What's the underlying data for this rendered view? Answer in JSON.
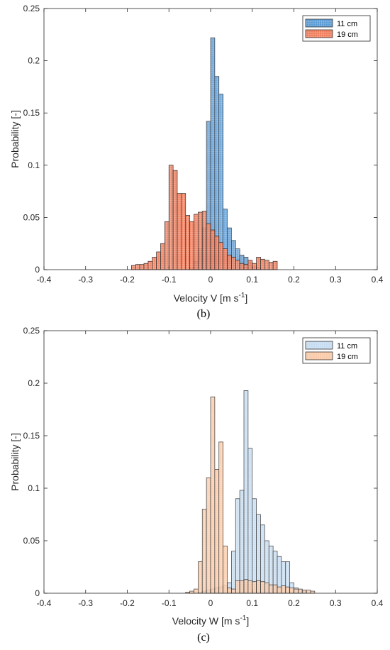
{
  "chart_data": [
    {
      "type": "histogram",
      "panel_label": "(b)",
      "xlabel": "Velocity V [m s",
      "xlabel_sup": "-1",
      "xlabel_end": "]",
      "ylabel": "Probability [-]",
      "xlim": [
        -0.4,
        0.4
      ],
      "ylim": [
        0,
        0.25
      ],
      "xticks": [
        "-0.4",
        "-0.3",
        "-0.2",
        "-0.1",
        "0",
        "0.1",
        "0.2",
        "0.3",
        "0.4"
      ],
      "yticks": [
        "0",
        "0.05",
        "0.1",
        "0.15",
        "0.2",
        "0.25"
      ],
      "legend_position": "top-right",
      "grid": false,
      "series": [
        {
          "name": "11 cm",
          "color": "#5b9bd5",
          "bin_start": -0.05,
          "bin_width": 0.01,
          "values": [
            0.002,
            0.008,
            0.02,
            0.04,
            0.142,
            0.222,
            0.185,
            0.168,
            0.058,
            0.04,
            0.028,
            0.02,
            0.014,
            0.012,
            0.007,
            0.003,
            0.002
          ]
        },
        {
          "name": "19 cm",
          "color": "#ef7c5a",
          "bin_start": -0.19,
          "bin_width": 0.01,
          "values": [
            0.004,
            0.005,
            0.005,
            0.006,
            0.008,
            0.012,
            0.017,
            0.025,
            0.046,
            0.1,
            0.095,
            0.073,
            0.073,
            0.052,
            0.046,
            0.053,
            0.055,
            0.056,
            0.044,
            0.038,
            0.032,
            0.026,
            0.02,
            0.014,
            0.012,
            0.009,
            0.006,
            0.005,
            0.009,
            0.006,
            0.012,
            0.01,
            0.009,
            0.007,
            0.008
          ]
        }
      ]
    },
    {
      "type": "histogram",
      "panel_label": "(c)",
      "xlabel": "Velocity W [m s",
      "xlabel_sup": "-1",
      "xlabel_end": "]",
      "ylabel": "Probability [-]",
      "xlim": [
        -0.4,
        0.4
      ],
      "ylim": [
        0,
        0.25
      ],
      "xticks": [
        "-0.4",
        "-0.3",
        "-0.2",
        "-0.1",
        "0",
        "0.1",
        "0.2",
        "0.3",
        "0.4"
      ],
      "yticks": [
        "0",
        "0.05",
        "0.1",
        "0.15",
        "0.2",
        "0.25"
      ],
      "legend_position": "top-right",
      "grid": false,
      "series": [
        {
          "name": "11 cm",
          "color": "#c5dbf0",
          "bin_start": -0.03,
          "bin_width": 0.01,
          "values": [
            0.001,
            0.002,
            0.003,
            0.004,
            0.005,
            0.006,
            0.007,
            0.01,
            0.04,
            0.09,
            0.098,
            0.193,
            0.138,
            0.09,
            0.075,
            0.065,
            0.05,
            0.045,
            0.04,
            0.035,
            0.03,
            0.03,
            0.01,
            0.005,
            0.003,
            0.002
          ]
        },
        {
          "name": "19 cm",
          "color": "#f8c9a8",
          "bin_start": -0.06,
          "bin_width": 0.01,
          "values": [
            0.001,
            0.002,
            0.004,
            0.03,
            0.08,
            0.11,
            0.187,
            0.118,
            0.144,
            0.045,
            0.005,
            0.004,
            0.012,
            0.012,
            0.013,
            0.012,
            0.011,
            0.012,
            0.011,
            0.01,
            0.008,
            0.008,
            0.006,
            0.007,
            0.006,
            0.005,
            0.004,
            0.004,
            0.003,
            0.003,
            0.002
          ]
        }
      ]
    }
  ]
}
